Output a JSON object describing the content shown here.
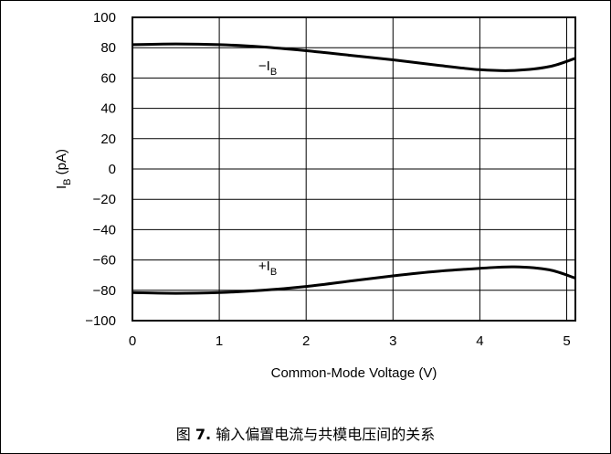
{
  "chart_data": {
    "type": "line",
    "xlabel": "Common-Mode Voltage (V)",
    "ylabel": {
      "main": "I",
      "sub": "B",
      "unit": " (pA)"
    },
    "xlim": [
      0,
      5.1
    ],
    "ylim": [
      -100,
      100
    ],
    "xticks": [
      0,
      1,
      2,
      3,
      4,
      5
    ],
    "yticks": [
      100,
      80,
      60,
      40,
      20,
      0,
      -20,
      -40,
      -60,
      -80,
      -100
    ],
    "grid": true,
    "series": [
      {
        "name": "−I_B",
        "label": {
          "prefix": "−I",
          "sub": "B",
          "at": {
            "x": 1.45,
            "y": 65
          }
        },
        "x": [
          0,
          0.5,
          1,
          1.5,
          2,
          2.5,
          3,
          3.5,
          4,
          4.4,
          4.8,
          5.1
        ],
        "y": [
          82,
          82.5,
          82,
          80.5,
          78,
          75,
          72,
          68.5,
          65.5,
          65,
          67.5,
          73
        ]
      },
      {
        "name": "+I_B",
        "label": {
          "prefix": "+I",
          "sub": "B",
          "at": {
            "x": 1.45,
            "y": -67
          }
        },
        "x": [
          0,
          0.5,
          1,
          1.5,
          2,
          2.5,
          3,
          3.5,
          4,
          4.4,
          4.8,
          5.1
        ],
        "y": [
          -81.5,
          -82,
          -81.5,
          -80,
          -77.5,
          -74,
          -70.5,
          -67.5,
          -65.5,
          -64.5,
          -66.5,
          -72
        ]
      }
    ]
  },
  "caption": {
    "prefix": "图 ",
    "fig": "7.",
    "text": " 输入偏置电流与共模电压间的关系"
  }
}
